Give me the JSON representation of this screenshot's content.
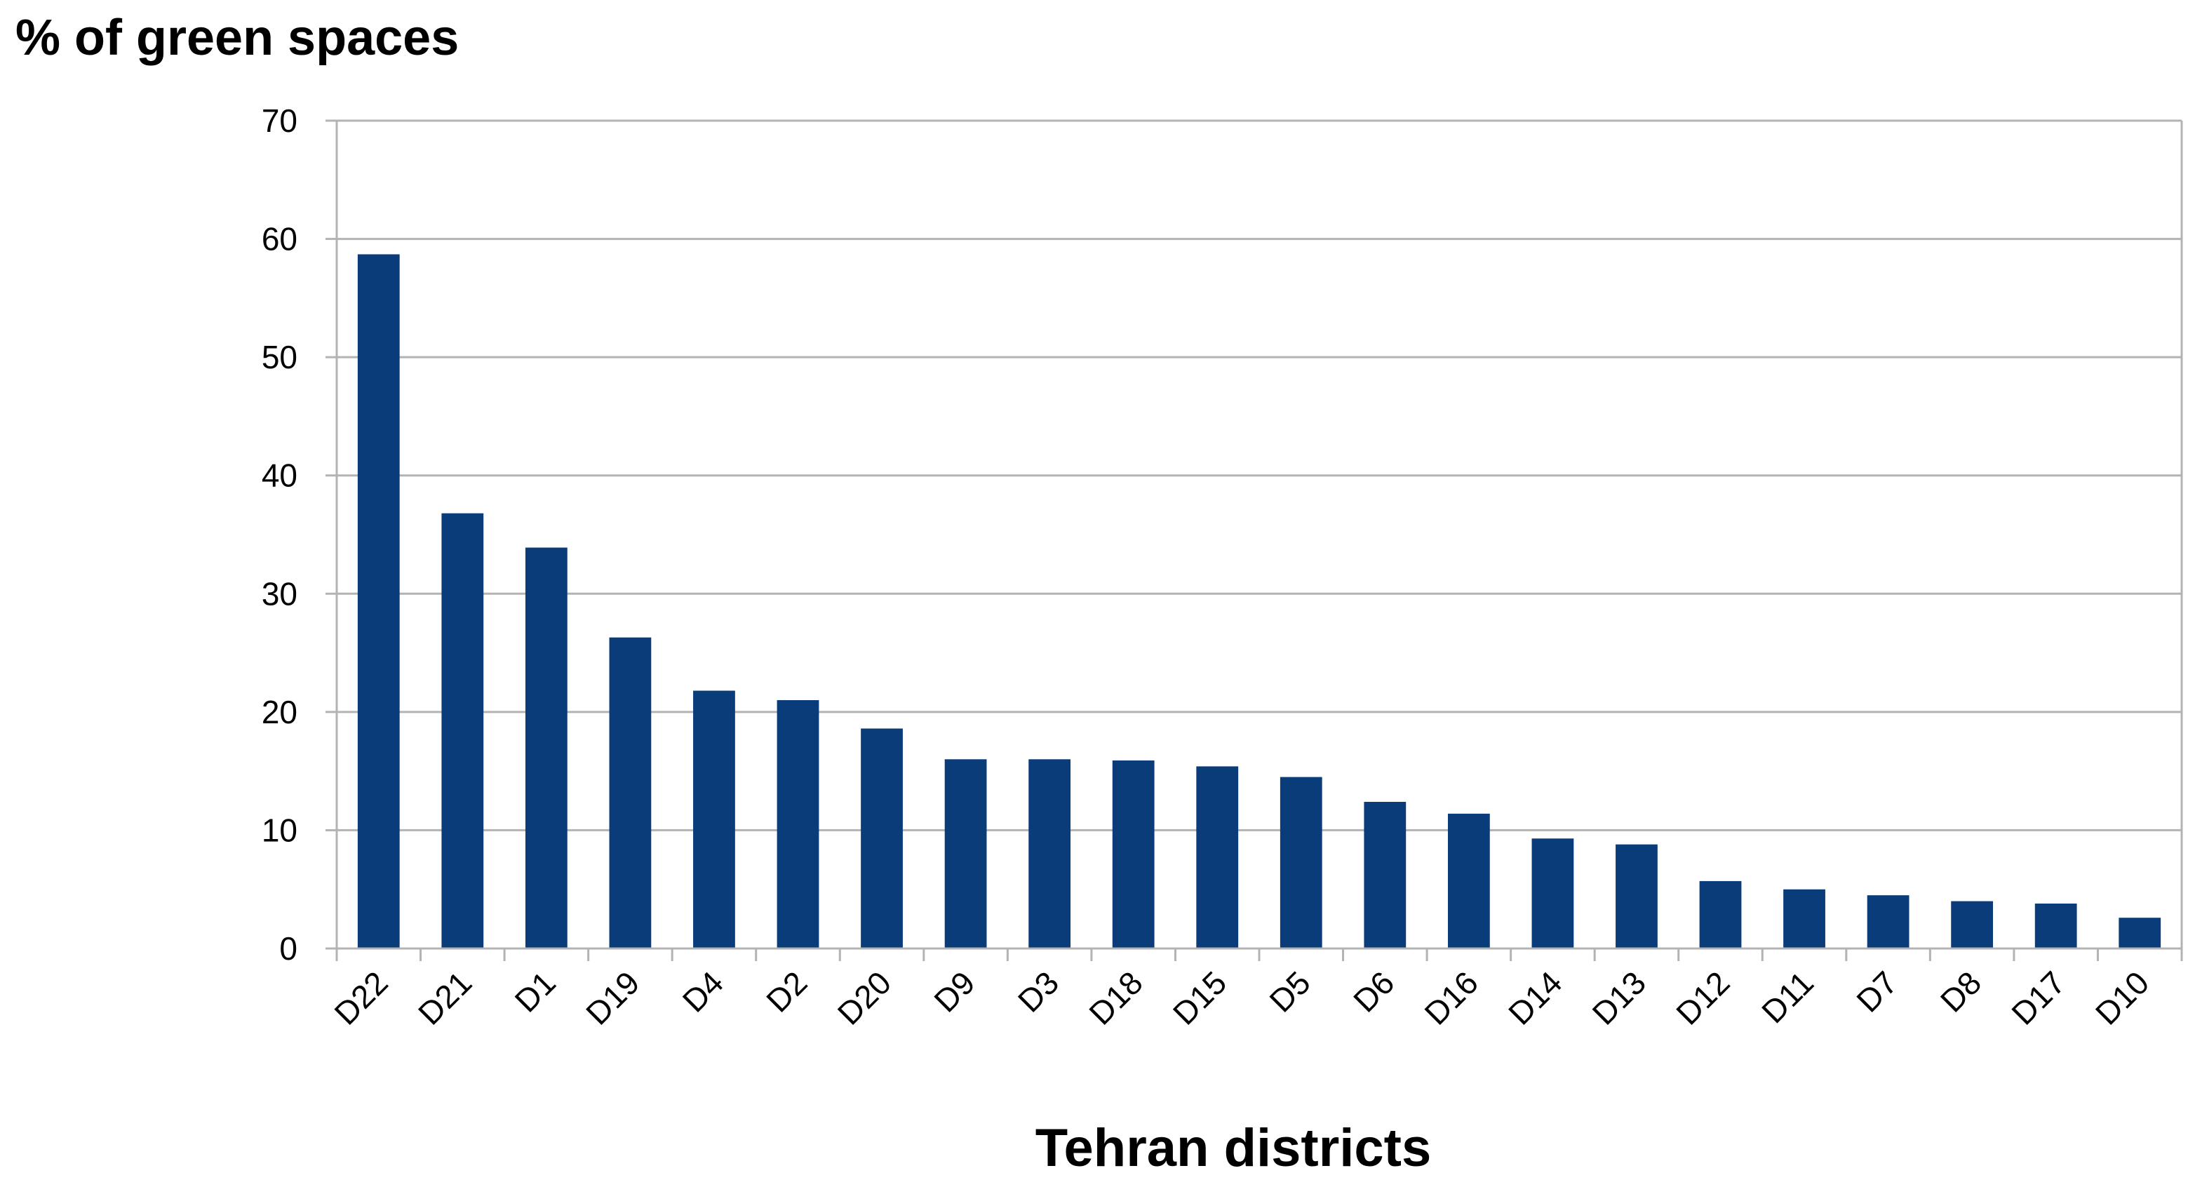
{
  "chart_data": {
    "type": "bar",
    "ylabel": "% of green spaces",
    "xlabel": "Tehran districts",
    "categories": [
      "D22",
      "D21",
      "D1",
      "D19",
      "D4",
      "D2",
      "D20",
      "D9",
      "D3",
      "D18",
      "D15",
      "D5",
      "D6",
      "D16",
      "D14",
      "D13",
      "D12",
      "D11",
      "D7",
      "D8",
      "D17",
      "D10"
    ],
    "values": [
      58.7,
      36.8,
      33.9,
      26.3,
      21.8,
      21.0,
      18.6,
      16.0,
      16.0,
      15.9,
      15.4,
      14.5,
      12.4,
      11.4,
      9.3,
      8.8,
      5.7,
      5.0,
      4.5,
      4.0,
      3.8,
      2.6
    ],
    "ylim": [
      0,
      70
    ],
    "yticks": [
      0,
      10,
      20,
      30,
      40,
      50,
      60,
      70
    ],
    "grid": true,
    "legend": "none",
    "bar_color": "#0a3c7a"
  }
}
